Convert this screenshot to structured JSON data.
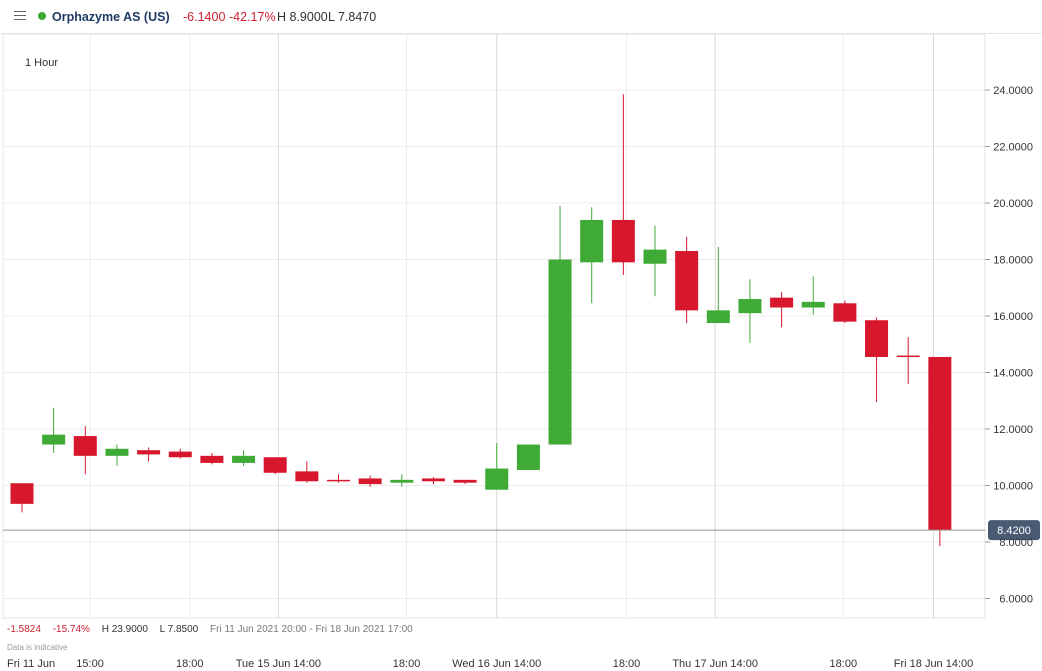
{
  "header": {
    "instrument": "Orphazyme AS (US)",
    "change": "-6.1400",
    "change_pct": "-42.17%",
    "high": "H 8.9000",
    "low": "L 7.8470"
  },
  "interval_label": "1 Hour",
  "footer": {
    "change": "-1.5824",
    "change_pct": "-15.74%",
    "high": "H 23.9000",
    "low": "L 7.8500",
    "date_range": "Fri 11 Jun 2021 20:00 - Fri 18 Jun 2021 17:00",
    "disclaimer": "Data is indicative"
  },
  "colors": {
    "up": "#3faa36",
    "down": "#d6172c",
    "price_line": "#999999",
    "price_label_bg": "#4a5a73"
  },
  "chart_data": {
    "type": "candlestick",
    "ylim": [
      5.0,
      25.4
    ],
    "y_ticks": [
      6,
      8,
      10,
      12,
      14,
      16,
      18,
      20,
      22,
      24
    ],
    "y_tick_labels": [
      "6.0000",
      "8.0000",
      "10.0000",
      "12.0000",
      "14.0000",
      "16.0000",
      "18.0000",
      "20.0000",
      "22.0000",
      "24.0000"
    ],
    "x_labels": [
      {
        "i": 0,
        "label": "Fri 11 Jun"
      },
      {
        "i": 2.15,
        "label": "15:00"
      },
      {
        "i": 5.3,
        "label": "18:00"
      },
      {
        "i": 8.1,
        "label": "Tue 15 Jun 14:00"
      },
      {
        "i": 12.15,
        "label": "18:00"
      },
      {
        "i": 15.0,
        "label": "Wed 16 Jun 14:00"
      },
      {
        "i": 19.1,
        "label": "18:00"
      },
      {
        "i": 21.9,
        "label": "Thu 17 Jun 14:00"
      },
      {
        "i": 25.95,
        "label": "18:00"
      },
      {
        "i": 28.8,
        "label": "Fri 18 Jun 14:00"
      }
    ],
    "grid_major": [
      8.1,
      15.0,
      21.9,
      28.8
    ],
    "grid_minor": [
      2.15,
      5.3,
      12.15,
      19.1,
      25.95
    ],
    "last_price": 8.42,
    "last_price_label": "8.4200",
    "candles": [
      {
        "o": 10.08,
        "h": 10.08,
        "l": 9.05,
        "c": 9.35
      },
      {
        "o": 11.45,
        "h": 12.75,
        "l": 11.15,
        "c": 11.8
      },
      {
        "o": 11.75,
        "h": 12.1,
        "l": 10.4,
        "c": 11.05
      },
      {
        "o": 11.05,
        "h": 11.45,
        "l": 10.7,
        "c": 11.3
      },
      {
        "o": 11.25,
        "h": 11.35,
        "l": 10.85,
        "c": 11.1
      },
      {
        "o": 11.2,
        "h": 11.3,
        "l": 10.95,
        "c": 11.0
      },
      {
        "o": 11.05,
        "h": 11.15,
        "l": 10.75,
        "c": 10.8
      },
      {
        "o": 10.8,
        "h": 11.25,
        "l": 10.7,
        "c": 11.05
      },
      {
        "o": 11.0,
        "h": 11.0,
        "l": 10.4,
        "c": 10.45
      },
      {
        "o": 10.5,
        "h": 10.85,
        "l": 10.1,
        "c": 10.15
      },
      {
        "o": 10.2,
        "h": 10.4,
        "l": 10.1,
        "c": 10.15
      },
      {
        "o": 10.25,
        "h": 10.35,
        "l": 9.95,
        "c": 10.05
      },
      {
        "o": 10.1,
        "h": 10.4,
        "l": 9.95,
        "c": 10.2
      },
      {
        "o": 10.25,
        "h": 10.3,
        "l": 10.05,
        "c": 10.15
      },
      {
        "o": 10.2,
        "h": 10.2,
        "l": 10.05,
        "c": 10.1
      },
      {
        "o": 9.85,
        "h": 11.5,
        "l": 9.85,
        "c": 10.6
      },
      {
        "o": 10.55,
        "h": 11.45,
        "l": 10.55,
        "c": 11.45
      },
      {
        "o": 11.45,
        "h": 19.9,
        "l": 11.45,
        "c": 18.0
      },
      {
        "o": 17.9,
        "h": 19.85,
        "l": 16.45,
        "c": 19.4
      },
      {
        "o": 19.4,
        "h": 23.85,
        "l": 17.45,
        "c": 17.9
      },
      {
        "o": 17.85,
        "h": 19.2,
        "l": 16.7,
        "c": 18.35
      },
      {
        "o": 18.3,
        "h": 18.8,
        "l": 15.75,
        "c": 16.2
      },
      {
        "o": 15.75,
        "h": 18.45,
        "l": 15.75,
        "c": 16.2
      },
      {
        "o": 16.1,
        "h": 17.3,
        "l": 15.05,
        "c": 16.6
      },
      {
        "o": 16.65,
        "h": 16.85,
        "l": 15.6,
        "c": 16.3
      },
      {
        "o": 16.3,
        "h": 17.4,
        "l": 16.05,
        "c": 16.5
      },
      {
        "o": 16.45,
        "h": 16.55,
        "l": 15.75,
        "c": 15.8
      },
      {
        "o": 15.85,
        "h": 15.95,
        "l": 12.95,
        "c": 14.55
      },
      {
        "o": 14.6,
        "h": 15.25,
        "l": 13.6,
        "c": 14.55
      },
      {
        "o": 14.55,
        "h": 14.55,
        "l": 7.85,
        "c": 8.42
      }
    ]
  }
}
